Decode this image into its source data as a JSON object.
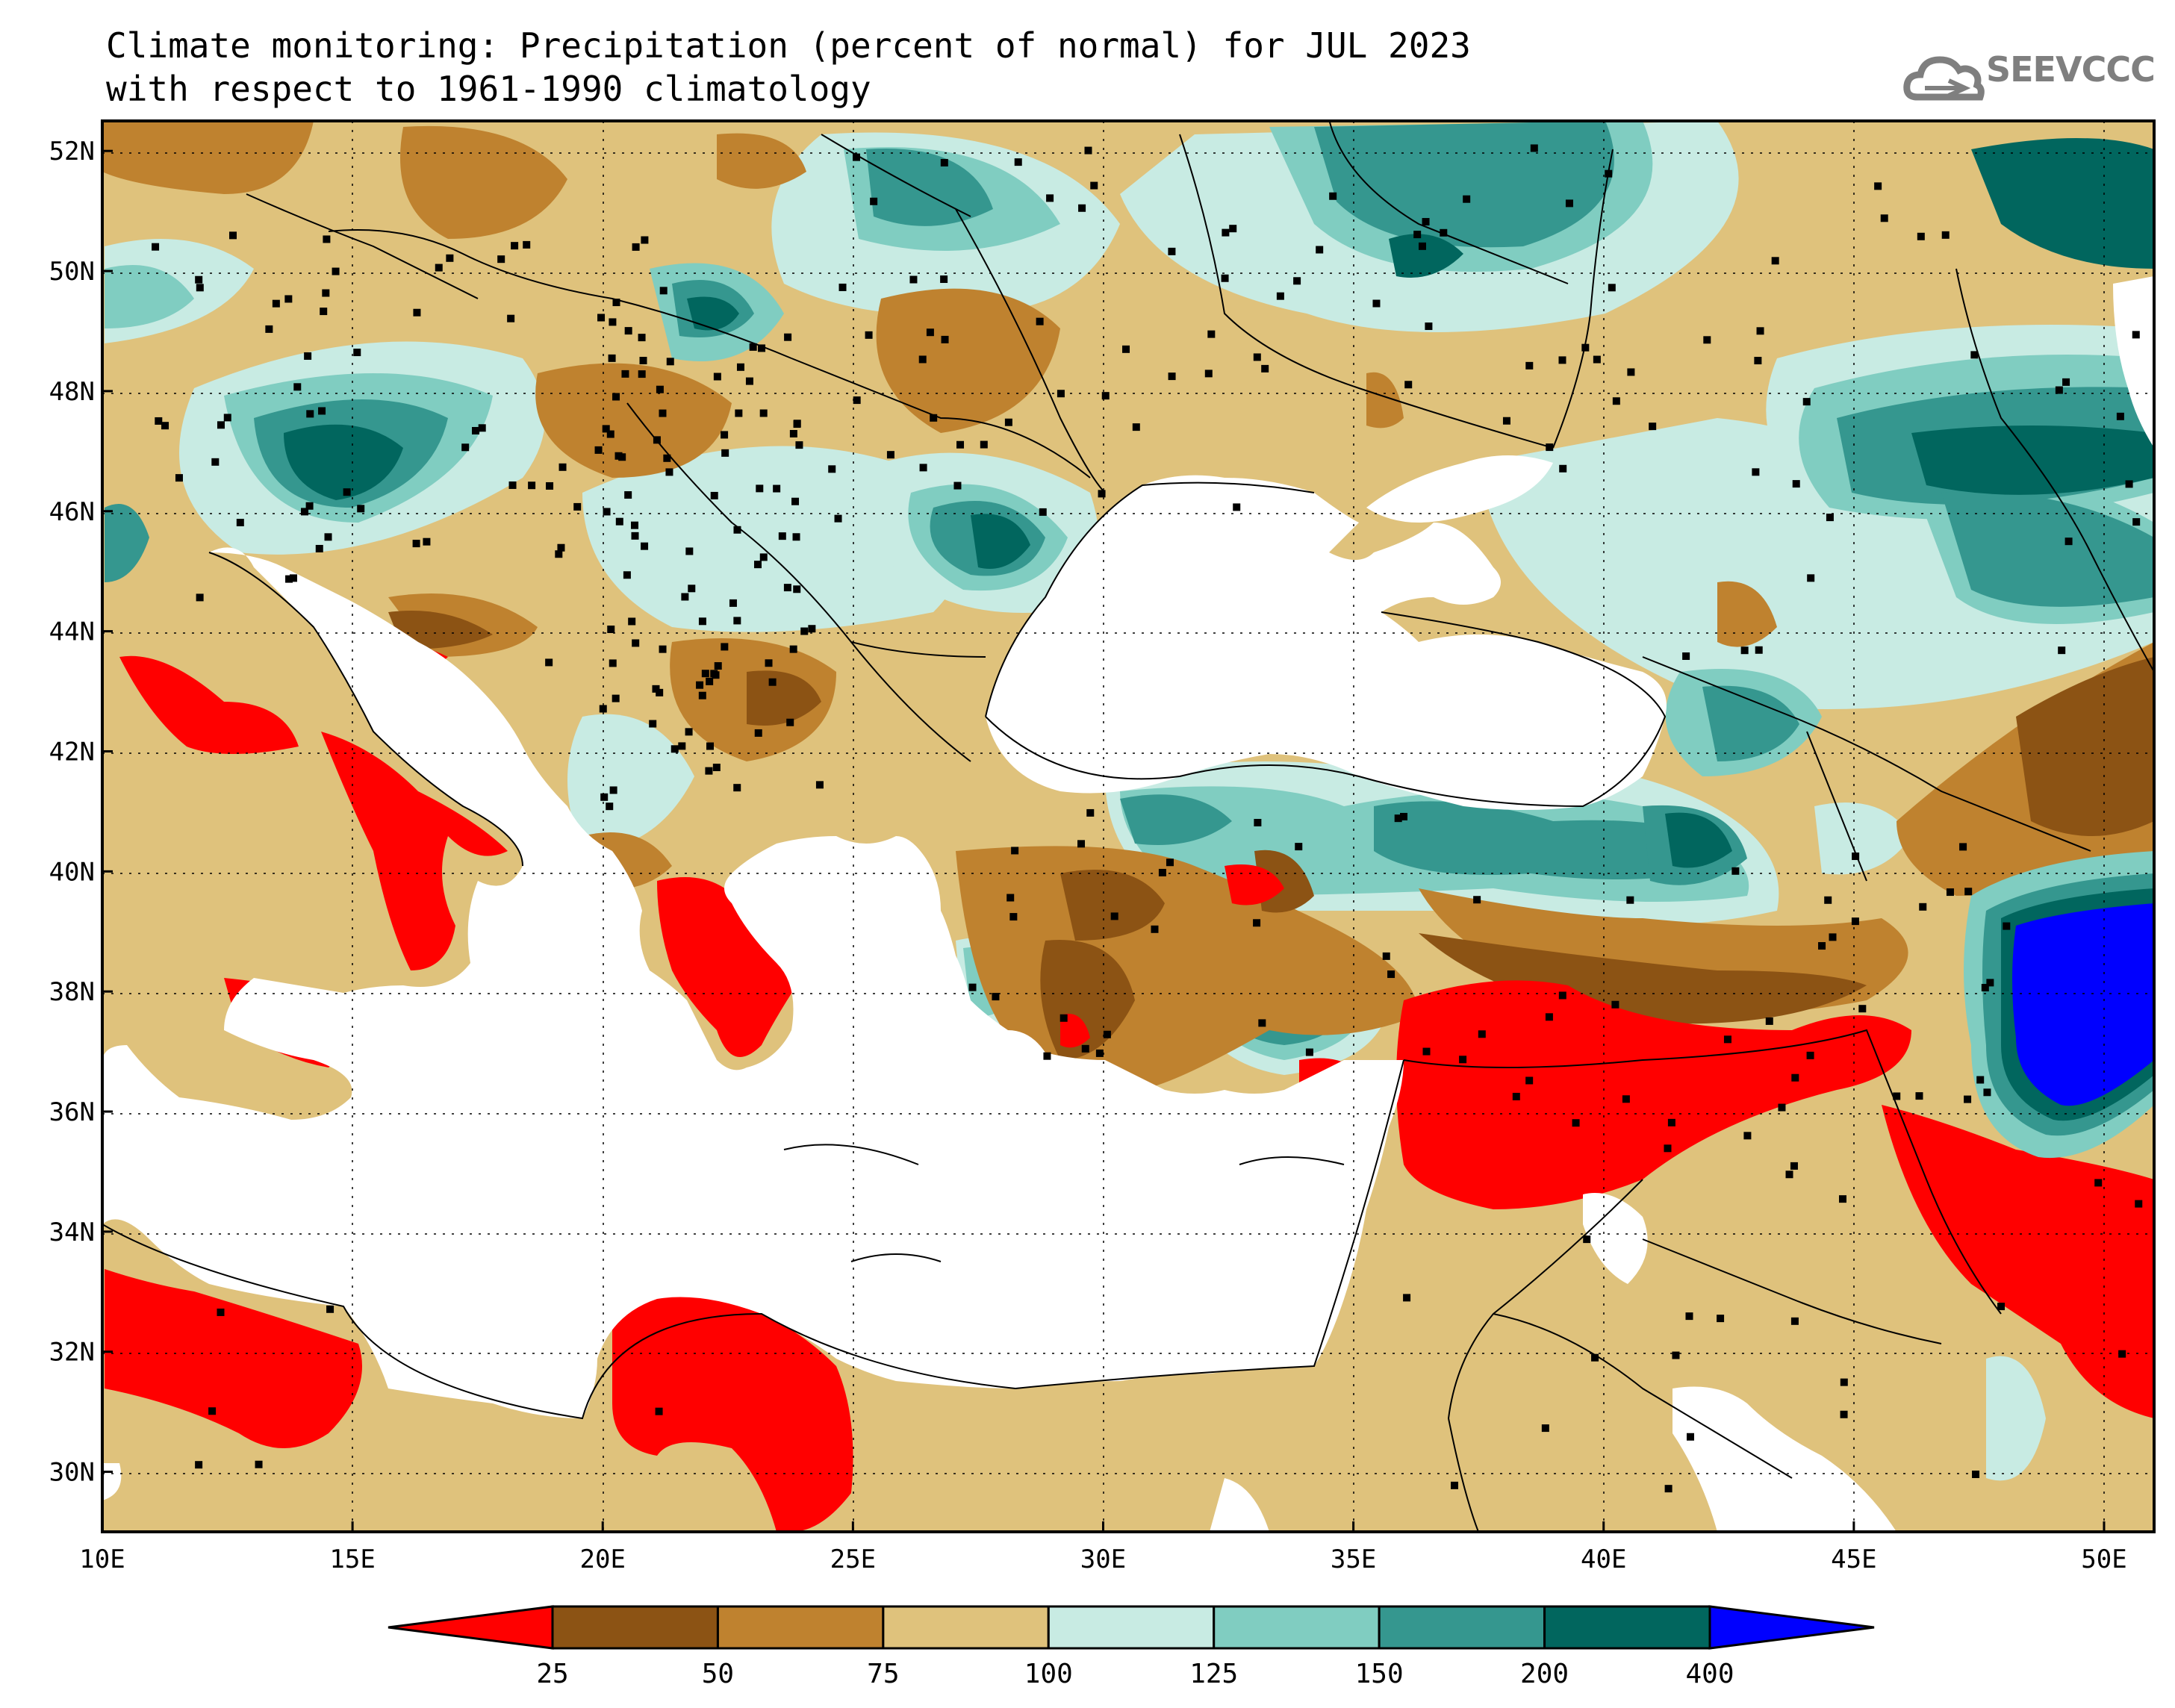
{
  "title": {
    "line1": "Climate monitoring: Precipitation (percent of normal) for JUL 2023",
    "line2": "with respect to 1961-1990 climatology"
  },
  "logo": {
    "text": "SEEVCCC",
    "icon": "cloud-icon",
    "color": "#7f7f7f"
  },
  "map": {
    "lon_range": [
      10,
      51
    ],
    "lat_range": [
      29,
      52.5
    ],
    "lon_ticks": [
      "10E",
      "15E",
      "20E",
      "25E",
      "30E",
      "35E",
      "40E",
      "45E",
      "50E"
    ],
    "lat_ticks": [
      "30N",
      "32N",
      "34N",
      "36N",
      "38N",
      "40N",
      "42N",
      "44N",
      "46N",
      "48N",
      "50N",
      "52N"
    ],
    "grid": "dotted"
  },
  "legend": {
    "labels": [
      "25",
      "50",
      "75",
      "100",
      "125",
      "150",
      "200",
      "400"
    ],
    "colors": [
      "#ff0000",
      "#8c5314",
      "#bf822f",
      "#dfc27c",
      "#c8ebe3",
      "#80cdc1",
      "#35978f",
      "#01665e",
      "#0000ff"
    ],
    "extend": "both"
  }
}
